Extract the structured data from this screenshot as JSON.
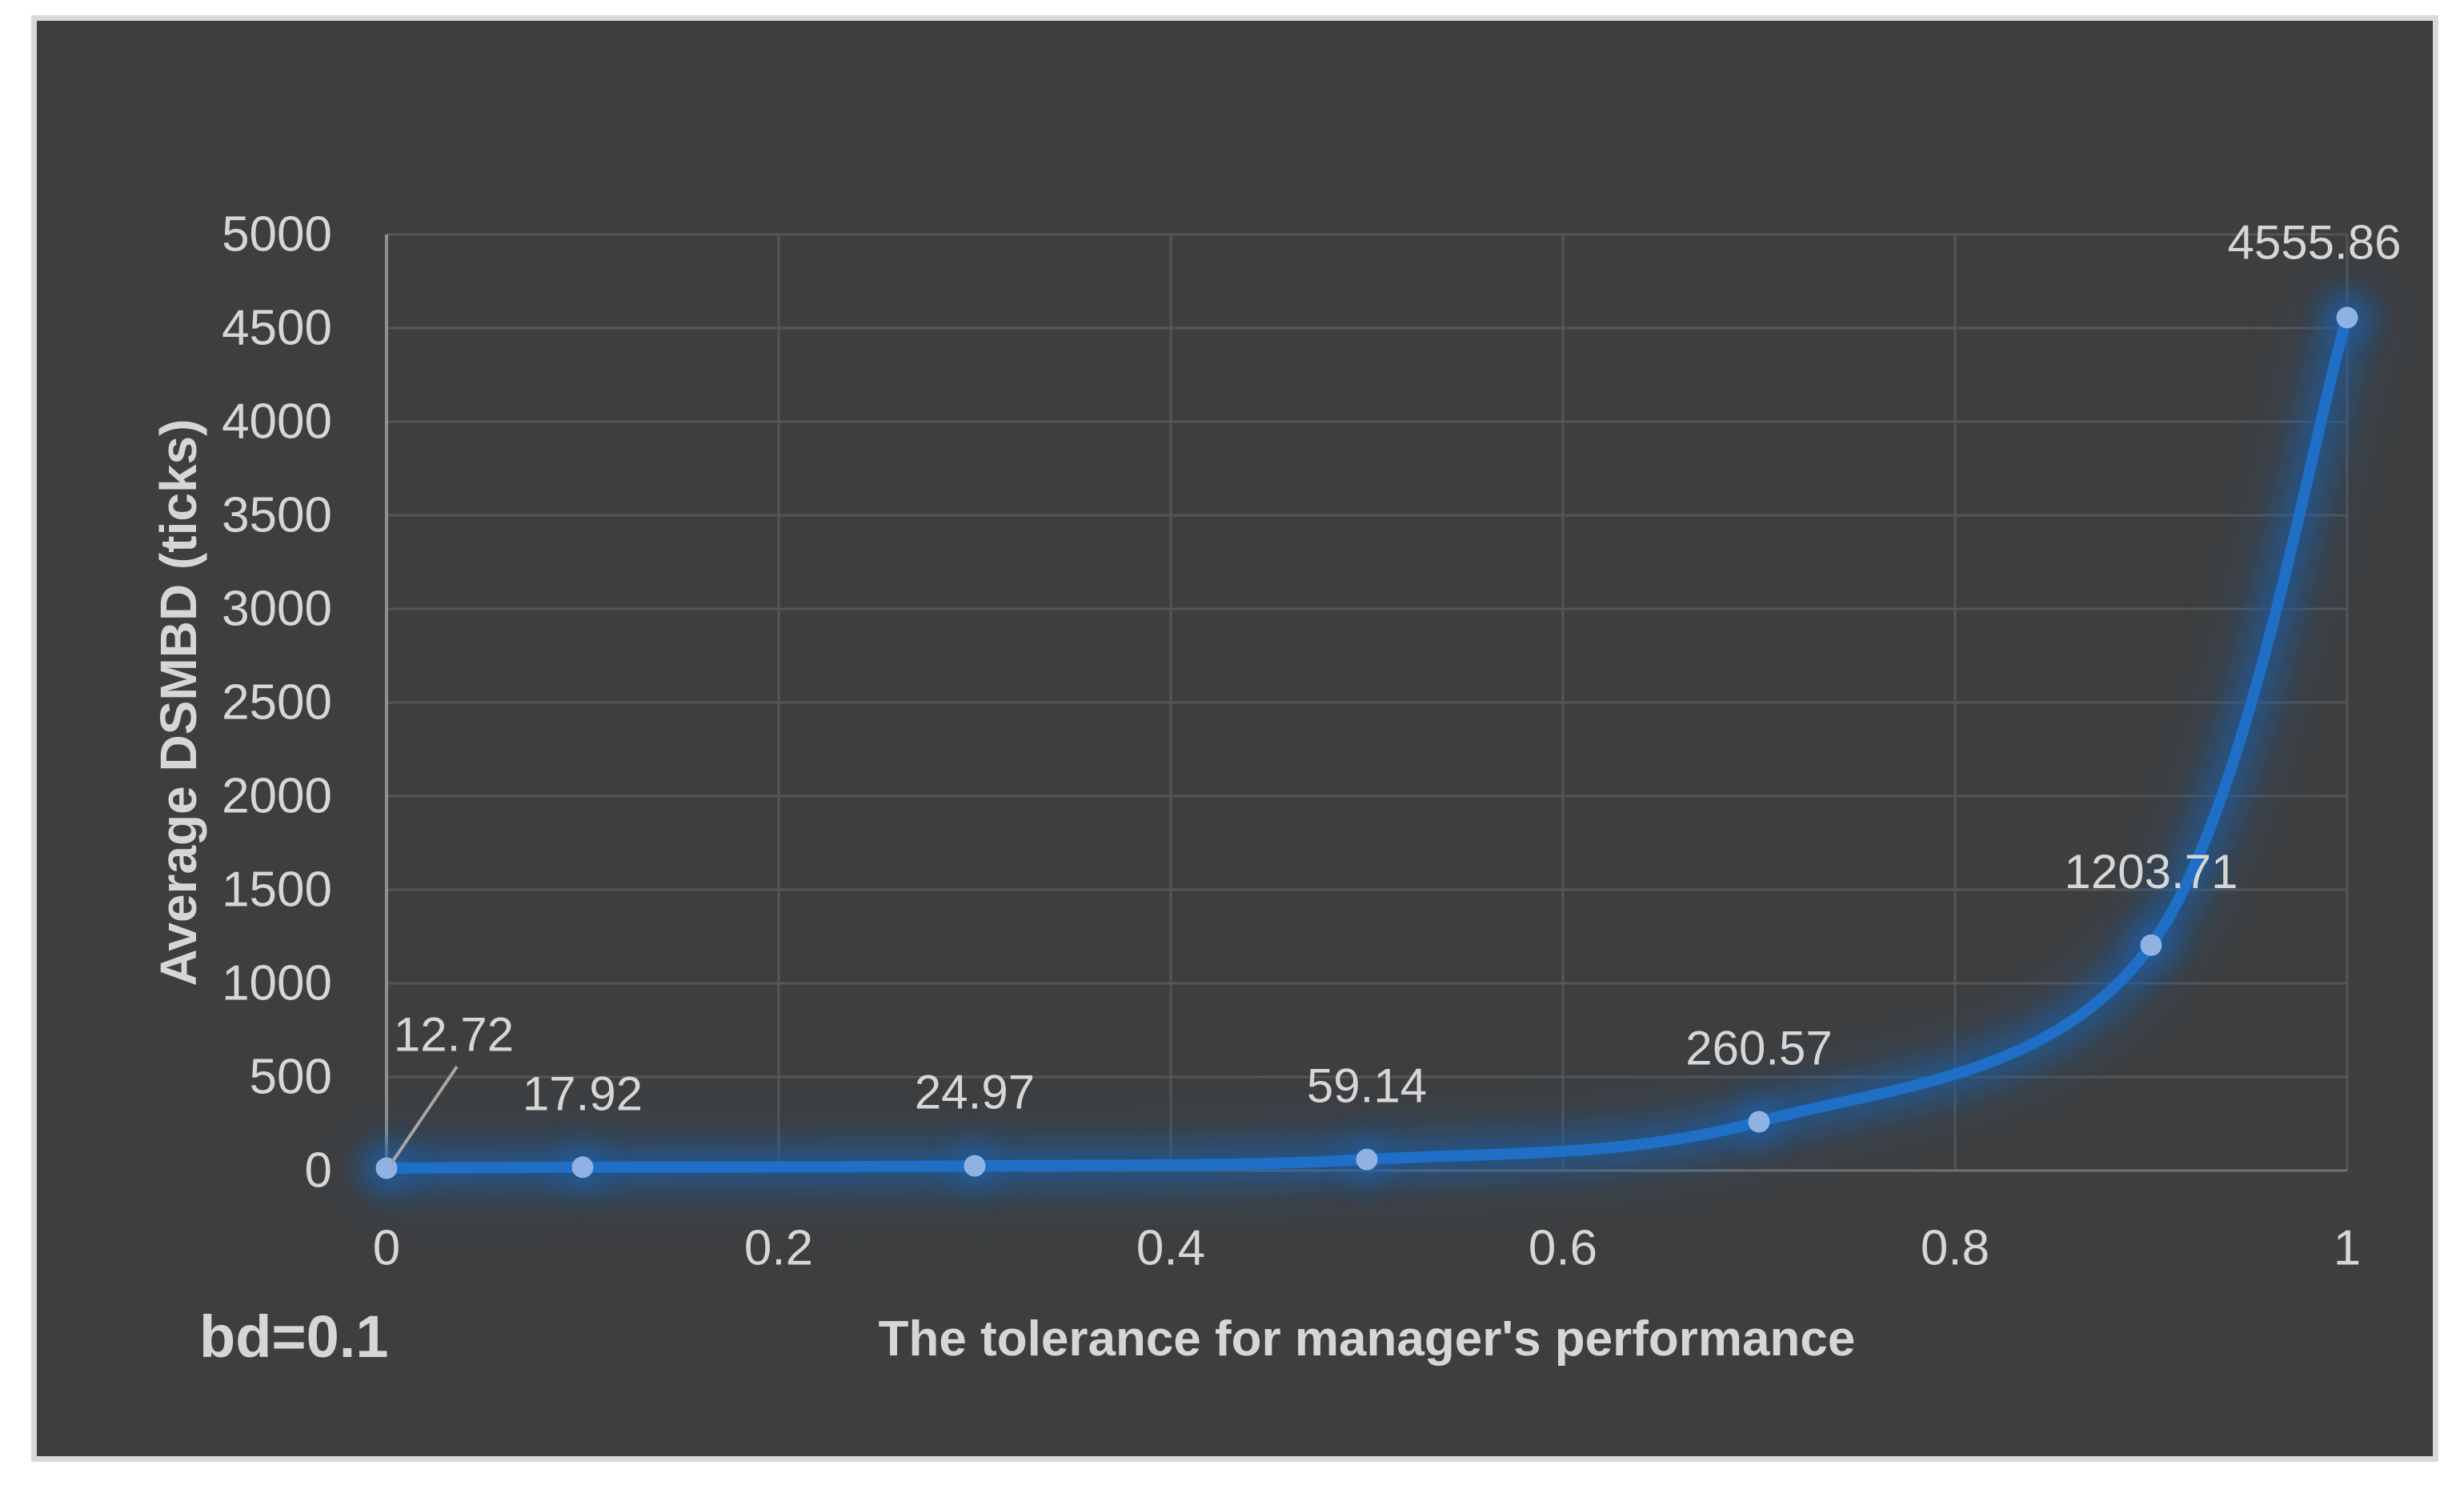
{
  "chart_data": {
    "type": "line",
    "title": "",
    "xlabel": "The tolerance for manager's performance",
    "ylabel": "Average DSMBD (ticks)",
    "annotation": "bd=0.1",
    "x": [
      0,
      0.1,
      0.3,
      0.5,
      0.7,
      0.9,
      1
    ],
    "values": [
      12.72,
      17.92,
      24.97,
      59.14,
      260.57,
      1203.71,
      4555.86
    ],
    "data_labels": [
      "12.72",
      "17.92",
      "24.97",
      "59.14",
      "260.57",
      "1203.71",
      "4555.86"
    ],
    "xlim": [
      0,
      1
    ],
    "ylim": [
      0,
      5000
    ],
    "x_ticks": {
      "values": [
        0,
        0.2,
        0.4,
        0.6,
        0.8,
        1
      ],
      "labels": [
        "0",
        "0.2",
        "0.4",
        "0.6",
        "0.8",
        "1"
      ]
    },
    "y_ticks": {
      "values": [
        0,
        500,
        1000,
        1500,
        2000,
        2500,
        3000,
        3500,
        4000,
        4500,
        5000
      ],
      "labels": [
        "0",
        "500",
        "1000",
        "1500",
        "2000",
        "2500",
        "3000",
        "3500",
        "4000",
        "4500",
        "5000"
      ]
    },
    "grid": true,
    "legend": false,
    "smooth": true,
    "marker": "circle",
    "colors": {
      "line": "#1F6FC7",
      "marker": "#8FB2E2",
      "glow": "#1E5FA8",
      "chart_background": "#3E3E3E",
      "frame_border": "#D9D9D9",
      "gridline": "#555555",
      "axis_line_left": "#909090",
      "axis_line_bottom": "#717171",
      "text": "#D6D6D6",
      "leader_line": "#A6A6A6"
    }
  }
}
